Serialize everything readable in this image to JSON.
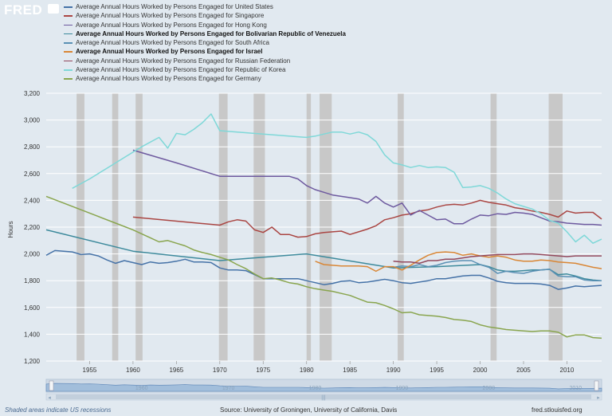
{
  "header": {
    "logo": "FRED"
  },
  "chart_data": {
    "type": "line",
    "title": "",
    "xlabel": "",
    "ylabel": "Hours",
    "xlim": [
      1950,
      2014
    ],
    "ylim": [
      1200,
      3200
    ],
    "yticks": [
      1200,
      1400,
      1600,
      1800,
      2000,
      2200,
      2400,
      2600,
      2800,
      3000,
      3200
    ],
    "ytick_labels": [
      "1,200",
      "1,400",
      "1,600",
      "1,800",
      "2,000",
      "2,200",
      "2,400",
      "2,600",
      "2,800",
      "3,000",
      "3,200"
    ],
    "xticks": [
      1955,
      1960,
      1965,
      1970,
      1975,
      1980,
      1985,
      1990,
      1995,
      2000,
      2005,
      2010
    ],
    "navigator_ticks": [
      1960,
      1970,
      1980,
      1990,
      2000,
      2010
    ],
    "grid": true,
    "legend_position": "top",
    "recession_shading": [
      [
        1953.5,
        1954.4
      ],
      [
        1957.6,
        1958.3
      ],
      [
        1960.3,
        1961.1
      ],
      [
        1969.9,
        1970.9
      ],
      [
        1973.9,
        1975.2
      ],
      [
        1980.0,
        1980.5
      ],
      [
        1981.5,
        1982.9
      ],
      [
        1990.5,
        1991.2
      ],
      [
        2001.2,
        2001.9
      ],
      [
        2007.9,
        2009.5
      ]
    ],
    "series": [
      {
        "name": "Average Annual Hours Worked by Persons Engaged for United States",
        "color": "#4572a7",
        "x": [
          1950,
          1951,
          1952,
          1953,
          1954,
          1955,
          1956,
          1957,
          1958,
          1959,
          1960,
          1961,
          1962,
          1963,
          1964,
          1965,
          1966,
          1967,
          1968,
          1969,
          1970,
          1971,
          1972,
          1973,
          1974,
          1975,
          1976,
          1977,
          1978,
          1979,
          1980,
          1981,
          1982,
          1983,
          1984,
          1985,
          1986,
          1987,
          1988,
          1989,
          1990,
          1991,
          1992,
          1993,
          1994,
          1995,
          1996,
          1997,
          1998,
          1999,
          2000,
          2001,
          2002,
          2003,
          2004,
          2005,
          2006,
          2007,
          2008,
          2009,
          2010,
          2011,
          2012,
          2013,
          2014
        ],
        "values": [
          1990,
          2025,
          2020,
          2015,
          1995,
          2000,
          1985,
          1955,
          1930,
          1950,
          1935,
          1920,
          1940,
          1930,
          1935,
          1945,
          1960,
          1940,
          1940,
          1935,
          1895,
          1880,
          1880,
          1875,
          1845,
          1815,
          1815,
          1815,
          1815,
          1815,
          1800,
          1785,
          1770,
          1780,
          1795,
          1800,
          1785,
          1790,
          1800,
          1810,
          1800,
          1785,
          1780,
          1790,
          1800,
          1815,
          1815,
          1825,
          1835,
          1840,
          1840,
          1820,
          1795,
          1785,
          1780,
          1780,
          1780,
          1775,
          1765,
          1735,
          1745,
          1760,
          1755,
          1760,
          1765
        ]
      },
      {
        "name": "Average Annual Hours Worked by Persons Engaged for Singapore",
        "color": "#aa4643",
        "x": [
          1960,
          1970,
          1971,
          1972,
          1973,
          1974,
          1975,
          1976,
          1977,
          1978,
          1979,
          1980,
          1981,
          1982,
          1983,
          1984,
          1985,
          1986,
          1987,
          1988,
          1989,
          1990,
          1991,
          1992,
          1993,
          1994,
          1995,
          1996,
          1997,
          1998,
          1999,
          2000,
          2001,
          2002,
          2003,
          2004,
          2005,
          2006,
          2007,
          2008,
          2009,
          2010,
          2011,
          2012,
          2013,
          2014
        ],
        "values": [
          2275,
          2215,
          2240,
          2255,
          2245,
          2180,
          2160,
          2200,
          2145,
          2145,
          2125,
          2130,
          2150,
          2160,
          2165,
          2170,
          2145,
          2165,
          2185,
          2210,
          2255,
          2270,
          2290,
          2300,
          2320,
          2330,
          2350,
          2365,
          2370,
          2365,
          2380,
          2400,
          2385,
          2375,
          2365,
          2345,
          2335,
          2320,
          2310,
          2295,
          2275,
          2320,
          2305,
          2310,
          2310,
          2260
        ]
      },
      {
        "name": "Average Annual Hours Worked by Persons Engaged for Hong Kong",
        "color": "#6e5a9f",
        "x": [
          1960,
          1965,
          1970,
          1975,
          1976,
          1977,
          1978,
          1979,
          1980,
          1981,
          1982,
          1983,
          1984,
          1985,
          1986,
          1987,
          1988,
          1989,
          1990,
          1991,
          1992,
          1993,
          1994,
          1995,
          1996,
          1997,
          1998,
          1999,
          2000,
          2001,
          2002,
          2003,
          2004,
          2005,
          2006,
          2007,
          2008,
          2009,
          2010,
          2011,
          2012,
          2013,
          2014
        ],
        "values": [
          2775,
          2680,
          2580,
          2580,
          2580,
          2580,
          2580,
          2560,
          2510,
          2480,
          2460,
          2440,
          2430,
          2420,
          2410,
          2380,
          2430,
          2380,
          2350,
          2380,
          2290,
          2325,
          2290,
          2255,
          2260,
          2225,
          2225,
          2260,
          2290,
          2285,
          2300,
          2295,
          2310,
          2305,
          2295,
          2270,
          2245,
          2240,
          2230,
          2225,
          2220,
          2220,
          2215
        ]
      },
      {
        "name": "Average Annual Hours Worked by Persons Engaged for Bolivarian Republic of Venezuela",
        "color": "#3d8a9c",
        "x": [
          1950,
          1960,
          1970,
          1980,
          1990,
          1995,
          2000,
          2001,
          2002,
          2003,
          2004,
          2005,
          2006,
          2007,
          2008,
          2009,
          2010,
          2011,
          2012,
          2013,
          2014
        ],
        "values": [
          2180,
          2020,
          1950,
          2000,
          1895,
          1905,
          1920,
          1905,
          1880,
          1870,
          1870,
          1875,
          1880,
          1880,
          1885,
          1845,
          1850,
          1835,
          1815,
          1805,
          1800
        ]
      },
      {
        "name": "Average Annual Hours Worked by Persons Engaged for South Africa",
        "color": "#5a90b4",
        "x": [
          1990,
          1991,
          1992,
          1993,
          1994,
          1995,
          1996,
          1997,
          1998,
          1999,
          2000,
          2001,
          2002,
          2003,
          2004,
          2005,
          2006,
          2007,
          2008,
          2009,
          2010,
          2011,
          2012,
          2013,
          2014
        ],
        "values": [
          1900,
          1910,
          1905,
          1920,
          1905,
          1915,
          1935,
          1945,
          1950,
          1950,
          1920,
          1900,
          1855,
          1870,
          1860,
          1855,
          1870,
          1880,
          1885,
          1835,
          1830,
          1830,
          1805,
          1800,
          1800
        ]
      },
      {
        "name": "Average Annual Hours Worked by Persons Engaged for Israel",
        "color": "#d98635",
        "x": [
          1981,
          1982,
          1983,
          1984,
          1985,
          1986,
          1987,
          1988,
          1989,
          1990,
          1991,
          1992,
          1993,
          1994,
          1995,
          1996,
          1997,
          1998,
          1999,
          2000,
          2001,
          2002,
          2003,
          2004,
          2005,
          2006,
          2007,
          2008,
          2009,
          2010,
          2011,
          2012,
          2013,
          2014
        ],
        "values": [
          1945,
          1920,
          1915,
          1910,
          1910,
          1910,
          1905,
          1870,
          1905,
          1905,
          1880,
          1915,
          1955,
          1990,
          2010,
          2015,
          2010,
          1990,
          2000,
          1985,
          1975,
          1985,
          1975,
          1955,
          1945,
          1945,
          1955,
          1950,
          1940,
          1935,
          1930,
          1915,
          1900,
          1890
        ]
      },
      {
        "name": "Average Annual Hours Worked by Persons Engaged for Russian Federation",
        "color": "#92485c",
        "x": [
          1990,
          1991,
          1992,
          1993,
          1994,
          1995,
          1996,
          1997,
          1998,
          1999,
          2000,
          2001,
          2002,
          2003,
          2004,
          2005,
          2006,
          2007,
          2008,
          2009,
          2010,
          2011,
          2012,
          2013,
          2014
        ],
        "values": [
          1945,
          1940,
          1940,
          1930,
          1950,
          1950,
          1960,
          1960,
          1970,
          1980,
          1985,
          1990,
          1995,
          1995,
          1995,
          2000,
          2000,
          1995,
          1990,
          1985,
          1980,
          1985,
          1985,
          1985,
          1985
        ]
      },
      {
        "name": "Average Annual Hours Worked by Persons Engaged for Republic of Korea",
        "color": "#7fd8d8",
        "x": [
          1953,
          1955,
          1957,
          1959,
          1961,
          1963,
          1964,
          1965,
          1966,
          1967,
          1968,
          1969,
          1970,
          1975,
          1980,
          1981,
          1982,
          1983,
          1984,
          1985,
          1986,
          1987,
          1988,
          1989,
          1990,
          1991,
          1992,
          1993,
          1994,
          1995,
          1996,
          1997,
          1998,
          1999,
          2000,
          2001,
          2002,
          2003,
          2004,
          2005,
          2006,
          2007,
          2008,
          2009,
          2010,
          2011,
          2012,
          2013,
          2014
        ],
        "values": [
          2490,
          2560,
          2640,
          2720,
          2800,
          2870,
          2790,
          2900,
          2890,
          2930,
          2980,
          3045,
          2920,
          2895,
          2870,
          2880,
          2895,
          2910,
          2910,
          2895,
          2910,
          2890,
          2840,
          2740,
          2680,
          2665,
          2645,
          2660,
          2645,
          2650,
          2645,
          2610,
          2495,
          2500,
          2510,
          2490,
          2455,
          2410,
          2375,
          2355,
          2335,
          2300,
          2250,
          2230,
          2165,
          2090,
          2140,
          2080,
          2110
        ]
      },
      {
        "name": "Average Annual Hours Worked by Persons Engaged for Germany",
        "color": "#89a54e",
        "x": [
          1950,
          1952,
          1954,
          1956,
          1958,
          1960,
          1961,
          1962,
          1963,
          1964,
          1965,
          1966,
          1967,
          1968,
          1969,
          1970,
          1971,
          1972,
          1973,
          1974,
          1975,
          1976,
          1977,
          1978,
          1979,
          1980,
          1981,
          1982,
          1983,
          1984,
          1985,
          1986,
          1987,
          1988,
          1989,
          1990,
          1991,
          1992,
          1993,
          1994,
          1995,
          1996,
          1997,
          1998,
          1999,
          2000,
          2001,
          2002,
          2003,
          2004,
          2005,
          2006,
          2007,
          2008,
          2009,
          2010,
          2011,
          2012,
          2013,
          2014
        ],
        "values": [
          2430,
          2380,
          2330,
          2280,
          2230,
          2180,
          2150,
          2120,
          2090,
          2100,
          2080,
          2060,
          2030,
          2010,
          1995,
          1975,
          1955,
          1920,
          1890,
          1850,
          1815,
          1820,
          1805,
          1785,
          1775,
          1755,
          1740,
          1730,
          1720,
          1705,
          1690,
          1665,
          1640,
          1635,
          1615,
          1590,
          1560,
          1565,
          1545,
          1540,
          1535,
          1525,
          1510,
          1505,
          1495,
          1470,
          1455,
          1445,
          1435,
          1430,
          1425,
          1420,
          1425,
          1425,
          1415,
          1380,
          1395,
          1395,
          1375,
          1370
        ]
      }
    ]
  },
  "footer": {
    "shaded_note": "Shaded areas indicate US recessions",
    "source": "Source: University of Groningen, University of California, Davis",
    "site": "fred.stlouisfed.org"
  }
}
